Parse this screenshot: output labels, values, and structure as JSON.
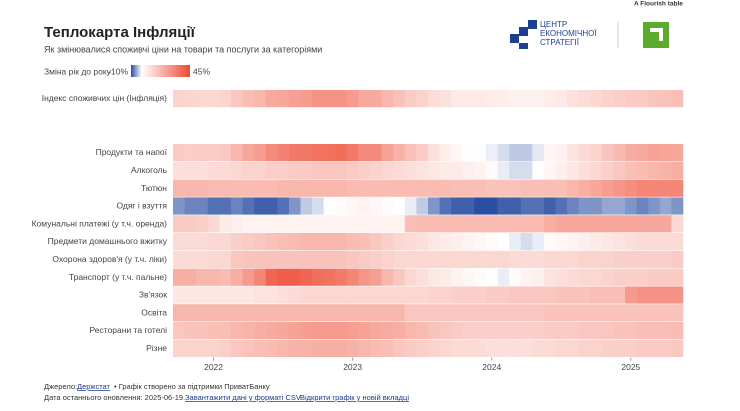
{
  "chart_data": {
    "type": "heatmap",
    "title": "Теплокарта Інфляції",
    "subtitle": "Як змінювалися споживчі ціни на товари та послуги за категоріями",
    "legend_title": "Зміна рік до року",
    "colorscale": {
      "min": {
        "value": -10,
        "label": "-10%"
      },
      "max": {
        "value": 45,
        "label": "45%"
      },
      "colors": [
        "#2b4ea2",
        "#ffffff",
        "#ee4a33"
      ]
    },
    "categories": [
      null,
      null,
      null,
      "2022",
      null,
      null,
      null,
      null,
      null,
      null,
      null,
      null,
      null,
      null,
      null,
      "2023",
      null,
      null,
      null,
      null,
      null,
      null,
      null,
      null,
      null,
      null,
      null,
      "2024",
      null,
      null,
      null,
      null,
      null,
      null,
      null,
      null,
      null,
      null,
      null,
      "2025",
      null,
      null,
      null,
      null
    ],
    "series": [
      {
        "name": "Індекс споживчих цін (Інфляція)",
        "values": [
          10.9,
          10.3,
          10.0,
          10.0,
          10.7,
          13.7,
          16.4,
          18.0,
          21.5,
          22.2,
          23.8,
          24.6,
          26.6,
          26.6,
          26.6,
          24.9,
          21.3,
          21.3,
          17.9,
          15.3,
          12.8,
          11.3,
          8.6,
          7.1,
          5.3,
          5.1,
          5.1,
          4.7,
          4.3,
          3.2,
          3.2,
          3.3,
          4.8,
          5.4,
          7.5,
          8.6,
          9.7,
          11.2,
          12.0,
          12.9,
          13.4,
          14.6,
          15.1,
          15.9
        ]
      },
      {
        "name": "Продукти та напої",
        "values": [
          13,
          12.5,
          12.7,
          12.6,
          13.6,
          18.1,
          22.2,
          24.5,
          29.1,
          31.4,
          33.5,
          33.6,
          35.2,
          35.2,
          36.3,
          33.3,
          29.1,
          28.5,
          23.1,
          19.2,
          15.4,
          12.7,
          7.6,
          4.5,
          1.9,
          0.2,
          -0.1,
          -0.9,
          -2.0,
          -3.1,
          -3.1,
          -1.3,
          2.1,
          3.5,
          7.0,
          9.1,
          11.2,
          14.6,
          17.5,
          20.6,
          21.4,
          23.0,
          22.5,
          22.0
        ]
      },
      {
        "name": "Алкоголь",
        "values": [
          8,
          8,
          8,
          9,
          9,
          10,
          11,
          11,
          12,
          12,
          13,
          13,
          14,
          14,
          14,
          13,
          12,
          11,
          10,
          9,
          8,
          7,
          6,
          5,
          5,
          4,
          3,
          1,
          -1,
          -2,
          -2,
          0,
          2,
          4,
          6,
          8,
          10,
          12,
          14,
          16,
          17,
          18,
          19,
          20
        ]
      },
      {
        "name": "Тютюн",
        "values": [
          18,
          18,
          18,
          17,
          17,
          17,
          17,
          17,
          17,
          18,
          18,
          18,
          18,
          18,
          18,
          17,
          17,
          17,
          17,
          17,
          17,
          17,
          17,
          17,
          16,
          16,
          16,
          15,
          15,
          15,
          16,
          16,
          16,
          16,
          18,
          20,
          22,
          24,
          26,
          28,
          30,
          30,
          30,
          30
        ]
      },
      {
        "name": "Одяг і взуття",
        "values": [
          -6,
          -7,
          -7,
          -8,
          -8,
          -7,
          -8,
          -9,
          -9,
          -8,
          -6,
          -3,
          -2,
          0,
          1,
          2,
          3,
          2,
          1,
          0,
          -1,
          -3,
          -6,
          -8,
          -9,
          -9,
          -10,
          -10,
          -9,
          -9,
          -8,
          -8,
          -9,
          -8,
          -7,
          -6,
          -6,
          -5,
          -5,
          -6,
          -7,
          -6,
          -5,
          -6
        ]
      },
      {
        "name": "Комунальні платежі (у т.ч. оренда)",
        "values": [
          13,
          13,
          12,
          10,
          5,
          4,
          3,
          3,
          3,
          3,
          3,
          3,
          3,
          3,
          3,
          3,
          3,
          3,
          3,
          3,
          16,
          17,
          17,
          17,
          17,
          17,
          17,
          17,
          17,
          17,
          17,
          17,
          20,
          22,
          22,
          22,
          22,
          22,
          22,
          22,
          22,
          22,
          22,
          10
        ]
      },
      {
        "name": "Предмети домашнього вжитку",
        "values": [
          9,
          9,
          9,
          10,
          10,
          12,
          13,
          14,
          15,
          16,
          17,
          18,
          18,
          18,
          18,
          17,
          16,
          14,
          12,
          10,
          9,
          8,
          6,
          5,
          4,
          3,
          2,
          1,
          0,
          -1,
          -2,
          -1,
          1,
          2,
          3,
          4,
          5,
          6,
          7,
          8,
          9,
          9,
          9,
          9
        ]
      },
      {
        "name": "Охорона здоров'я (у т.ч. ліки)",
        "values": [
          9,
          9,
          9,
          10,
          10,
          14,
          15,
          15,
          15,
          15,
          15,
          15,
          15,
          15,
          15,
          14,
          13,
          12,
          11,
          10,
          10,
          10,
          10,
          10,
          10,
          10,
          10,
          10,
          10,
          9,
          9,
          9,
          10,
          10,
          10,
          11,
          11,
          11,
          12,
          12,
          12,
          12,
          12,
          13
        ]
      },
      {
        "name": "Транспорт (у т.ч. пальне)",
        "values": [
          20,
          20,
          18,
          18,
          17,
          20,
          25,
          30,
          38,
          40,
          40,
          38,
          36,
          35,
          33,
          30,
          26,
          24,
          18,
          14,
          10,
          8,
          6,
          5,
          3,
          2,
          1,
          0,
          -1,
          1,
          3,
          4,
          7,
          8,
          9,
          10,
          10,
          11,
          12,
          12,
          12,
          13,
          13,
          13
        ]
      },
      {
        "name": "Зв'язок",
        "values": [
          6,
          6,
          6,
          6,
          6,
          6,
          6,
          7,
          7,
          8,
          9,
          10,
          10,
          10,
          10,
          10,
          10,
          10,
          10,
          10,
          10,
          10,
          11,
          11,
          12,
          12,
          12,
          13,
          13,
          14,
          14,
          14,
          14,
          15,
          15,
          15,
          16,
          16,
          16,
          25,
          27,
          27,
          27,
          27
        ]
      },
      {
        "name": "Освіта",
        "values": [
          18,
          18,
          18,
          18,
          18,
          18,
          18,
          18,
          18,
          18,
          18,
          18,
          18,
          18,
          18,
          18,
          18,
          18,
          18,
          18,
          14,
          14,
          14,
          14,
          14,
          14,
          14,
          14,
          14,
          14,
          14,
          14,
          15,
          15,
          15,
          15,
          15,
          15,
          15,
          15,
          15,
          15,
          15,
          15
        ]
      },
      {
        "name": "Ресторани та готелі",
        "values": [
          14,
          15,
          15,
          16,
          16,
          18,
          19,
          20,
          21,
          22,
          23,
          24,
          25,
          25,
          25,
          24,
          23,
          22,
          21,
          20,
          18,
          17,
          15,
          14,
          13,
          12,
          12,
          12,
          12,
          12,
          12,
          12,
          13,
          13,
          13,
          14,
          14,
          14,
          15,
          15,
          16,
          16,
          16,
          17
        ]
      },
      {
        "name": "Різне",
        "values": [
          11,
          11,
          11,
          11,
          12,
          14,
          15,
          16,
          17,
          18,
          19,
          19,
          20,
          20,
          20,
          19,
          18,
          17,
          16,
          14,
          13,
          12,
          11,
          10,
          9,
          9,
          9,
          8,
          8,
          8,
          8,
          9,
          9,
          10,
          10,
          11,
          11,
          12,
          12,
          12,
          13,
          13,
          13,
          14
        ]
      }
    ]
  },
  "header": {
    "flourish": "A Flourish table",
    "logo_text": [
      "ЦЕНТР",
      "ЕКОНОМІЧНОЇ",
      "СТРАТЕГІЇ"
    ]
  },
  "footer": {
    "source_label": "Джерело:",
    "source": "Держстат",
    "credit": "• Графік створено за підтримки ПриватБанку",
    "updated": "Дата останнього оновлення: 2025-06-19.",
    "download": "Завантажити дані у форматі CSV",
    "open": "Відкрити графік у новій вкладці"
  }
}
